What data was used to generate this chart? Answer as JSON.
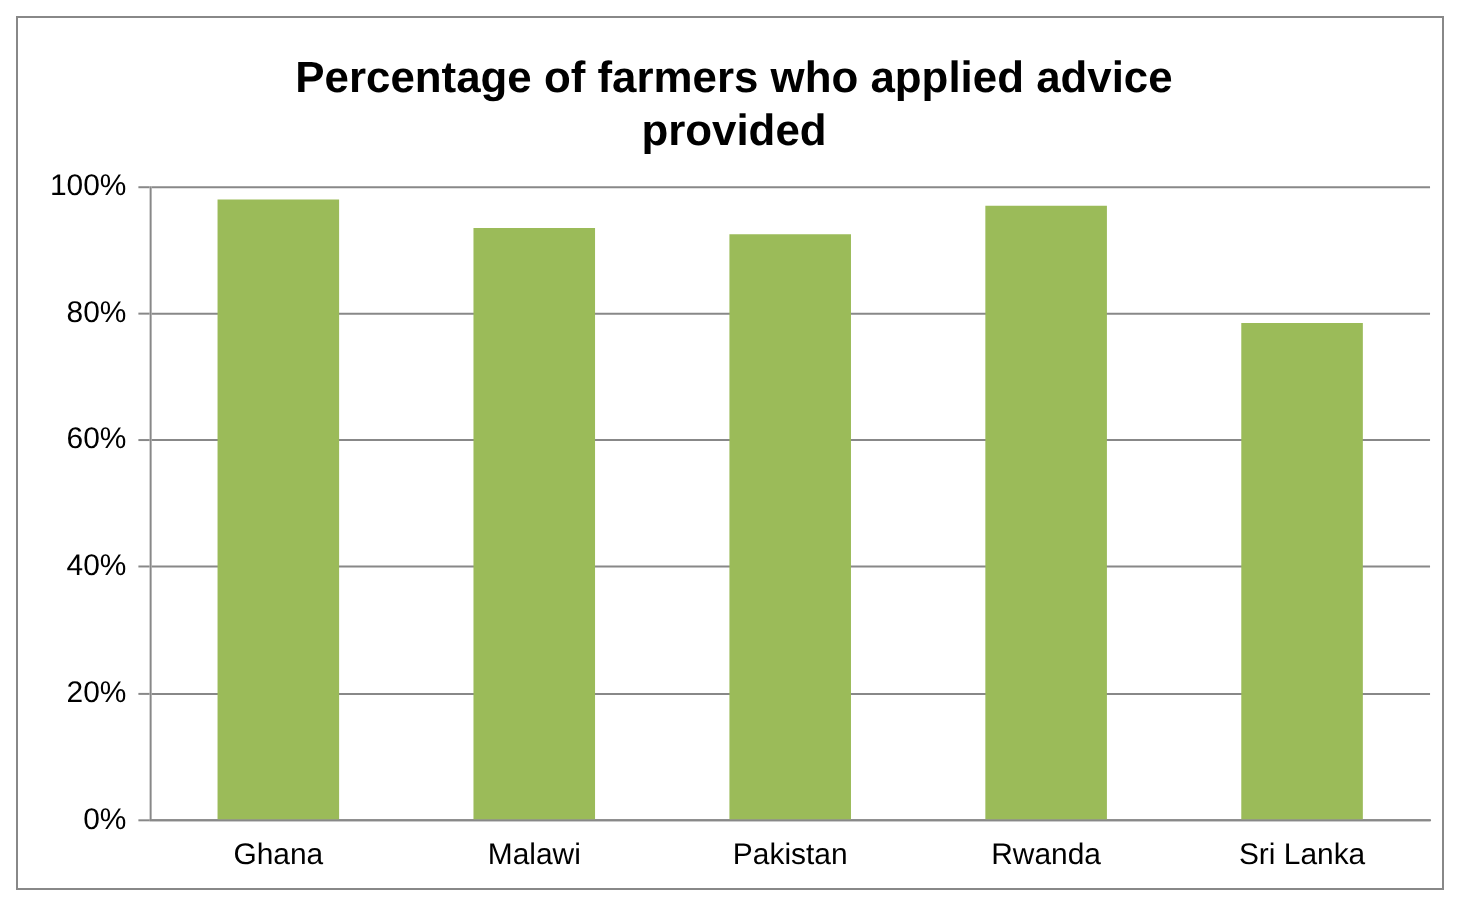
{
  "chart_data": {
    "type": "bar",
    "title": "Percentage of farmers who applied advice provided",
    "categories": [
      "Ghana",
      "Malawi",
      "Pakistan",
      "Rwanda",
      "Sri Lanka"
    ],
    "values": [
      98,
      93.5,
      92.5,
      97,
      78.5
    ],
    "color": "#9bbb59",
    "ylim": [
      0,
      100
    ],
    "yticks": [
      {
        "value": 0,
        "label": "0%"
      },
      {
        "value": 20,
        "label": "20%"
      },
      {
        "value": 40,
        "label": "40%"
      },
      {
        "value": 60,
        "label": "60%"
      },
      {
        "value": 80,
        "label": "80%"
      },
      {
        "value": 100,
        "label": "100%"
      }
    ],
    "grid": "y",
    "legend": false
  }
}
